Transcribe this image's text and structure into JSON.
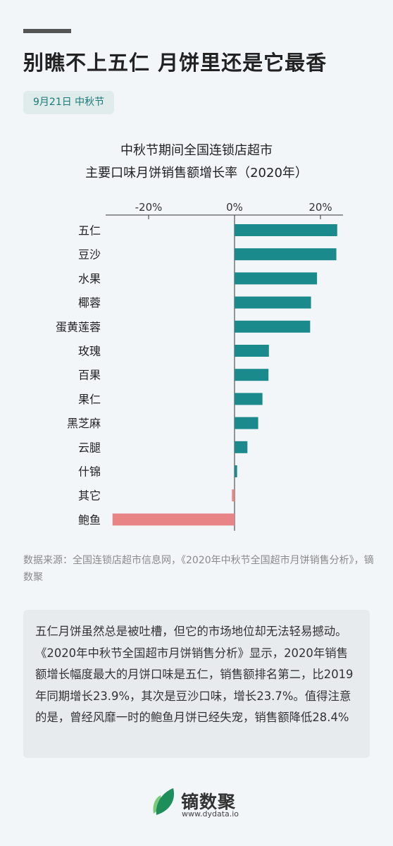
{
  "header": {
    "title": "别瞧不上五仁  月饼里还是它最香",
    "date_tag": "9月21日  中秋节"
  },
  "chart_data": {
    "type": "bar",
    "orientation": "horizontal",
    "title_line1": "中秋节期间全国连锁店超市",
    "title_line2": "主要口味月饼销售额增长率（2020年）",
    "categories": [
      "五仁",
      "豆沙",
      "水果",
      "椰蓉",
      "蛋黄莲蓉",
      "玫瑰",
      "百果",
      "果仁",
      "黑芝麻",
      "云腿",
      "什锦",
      "其它",
      "鲍鱼"
    ],
    "values": [
      23.9,
      23.7,
      19.2,
      17.8,
      17.6,
      8.0,
      7.9,
      6.5,
      5.5,
      3.0,
      0.6,
      -0.6,
      -28.4
    ],
    "unit": "%",
    "xlim": [
      -30,
      25
    ],
    "xticks": [
      -20,
      0,
      20
    ],
    "xtick_labels": [
      "-20%",
      "0%",
      "20%"
    ],
    "axis_position": "top",
    "colors": {
      "positive": "#1a8a8c",
      "negative": "#e88485"
    }
  },
  "source": "数据来源：全国连锁店超市信息网，《2020年中秋节全国超市月饼销售分析》，镝数聚",
  "note": "五仁月饼虽然总是被吐槽，但它的市场地位却无法轻易撼动。《2020年中秋节全国超市月饼销售分析》显示，2020年销售额增长幅度最大的月饼口味是五仁，销售额排名第二，比2019年同期增长23.9%，其次是豆沙口味，增长23.7%。值得注意的是，曾经风靡一时的鲍鱼月饼已经失宠，销售额降低28.4%",
  "brand": {
    "name": "镝数聚",
    "url": "www.dydata.io",
    "logo_icon": "leaf-logo-icon",
    "colors": {
      "leaf_dark": "#1e8f5a",
      "leaf_light": "#7dc97a"
    }
  }
}
